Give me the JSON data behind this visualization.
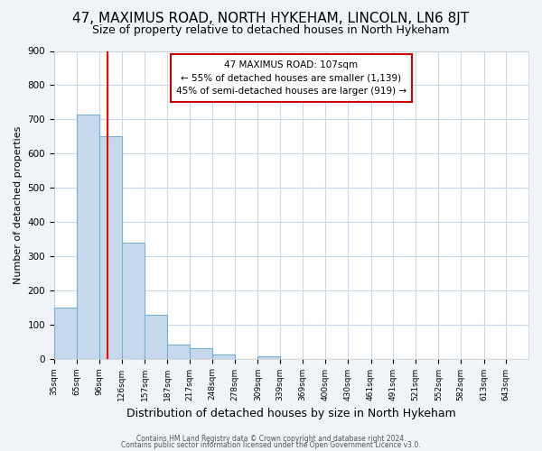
{
  "title": "47, MAXIMUS ROAD, NORTH HYKEHAM, LINCOLN, LN6 8JT",
  "subtitle": "Size of property relative to detached houses in North Hykeham",
  "xlabel": "Distribution of detached houses by size in North Hykeham",
  "ylabel": "Number of detached properties",
  "bin_labels": [
    "35sqm",
    "65sqm",
    "96sqm",
    "126sqm",
    "157sqm",
    "187sqm",
    "217sqm",
    "248sqm",
    "278sqm",
    "309sqm",
    "339sqm",
    "369sqm",
    "400sqm",
    "430sqm",
    "461sqm",
    "491sqm",
    "521sqm",
    "552sqm",
    "582sqm",
    "613sqm",
    "643sqm"
  ],
  "bin_edges": [
    35,
    65,
    96,
    126,
    157,
    187,
    217,
    248,
    278,
    309,
    339,
    369,
    400,
    430,
    461,
    491,
    521,
    552,
    582,
    613,
    643
  ],
  "bar_heights": [
    150,
    715,
    650,
    340,
    128,
    42,
    30,
    13,
    0,
    8,
    0,
    0,
    0,
    0,
    0,
    0,
    0,
    0,
    0,
    0
  ],
  "bar_color": "#c6d9ec",
  "bar_edge_color": "#7aafd4",
  "red_line_x": 107,
  "ylim": [
    0,
    900
  ],
  "yticks": [
    0,
    100,
    200,
    300,
    400,
    500,
    600,
    700,
    800,
    900
  ],
  "annotation_text": "47 MAXIMUS ROAD: 107sqm\n← 55% of detached houses are smaller (1,139)\n45% of semi-detached houses are larger (919) →",
  "annotation_box_facecolor": "#ffffff",
  "annotation_box_edgecolor": "#cc0000",
  "footer_line1": "Contains HM Land Registry data © Crown copyright and database right 2024.",
  "footer_line2": "Contains public sector information licensed under the Open Government Licence v3.0.",
  "fig_background_color": "#f0f4f8",
  "plot_background_color": "#ffffff",
  "grid_color": "#c8d8e8",
  "title_fontsize": 11,
  "subtitle_fontsize": 9,
  "ylabel_fontsize": 8,
  "xlabel_fontsize": 9
}
